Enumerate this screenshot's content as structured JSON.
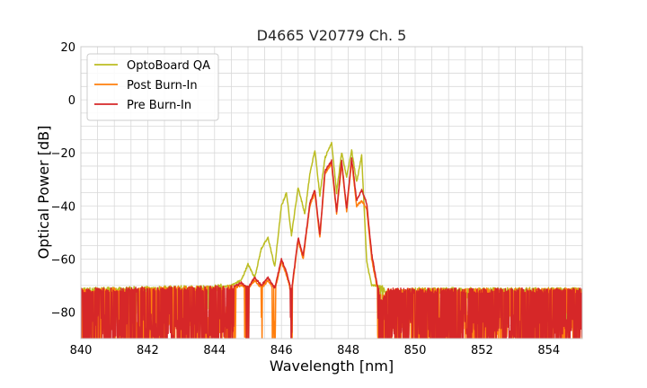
{
  "chart_data": {
    "type": "line",
    "title": "D4665 V20779 Ch. 5",
    "xlabel": "Wavelength [nm]",
    "ylabel": "Optical Power [dB]",
    "xlim": [
      840,
      855
    ],
    "ylim": [
      -90,
      20
    ],
    "xticks": [
      840,
      842,
      844,
      846,
      848,
      850,
      852,
      854
    ],
    "yticks": [
      20,
      0,
      -20,
      -40,
      -60,
      -80
    ],
    "xtick_labels": [
      "840",
      "842",
      "844",
      "846",
      "848",
      "850",
      "852",
      "854"
    ],
    "ytick_labels": [
      "20",
      "0",
      "−20",
      "−40",
      "−60",
      "−80"
    ],
    "grid": true,
    "legend_position": "top-left",
    "noise_floor_db": -72,
    "series": [
      {
        "name": "OptoBoard QA",
        "color": "#bcbd22",
        "x": [
          840.0,
          844.0,
          844.5,
          844.8,
          845.0,
          845.2,
          845.4,
          845.6,
          845.8,
          846.0,
          846.15,
          846.3,
          846.5,
          846.7,
          846.85,
          847.0,
          847.15,
          847.3,
          847.5,
          847.65,
          847.8,
          847.95,
          848.1,
          848.25,
          848.4,
          848.55,
          848.7,
          848.85,
          849.0,
          849.2,
          850.0,
          855.0
        ],
        "values": [
          -72,
          -71,
          -70,
          -68,
          -62,
          -67,
          -56,
          -52,
          -63,
          -40,
          -35,
          -51,
          -33,
          -43,
          -28,
          -19,
          -36,
          -22,
          -16,
          -35,
          -20,
          -29,
          -19,
          -31,
          -21,
          -61,
          -70,
          -70,
          -71,
          -74,
          -72,
          -72
        ]
      },
      {
        "name": "Post Burn-In",
        "color": "#ff7f0e",
        "x": [
          840.0,
          844.5,
          844.8,
          845.0,
          845.2,
          845.4,
          845.6,
          845.8,
          846.0,
          846.15,
          846.3,
          846.5,
          846.65,
          846.85,
          847.0,
          847.15,
          847.3,
          847.5,
          847.65,
          847.8,
          847.95,
          848.1,
          848.25,
          848.4,
          848.55,
          848.7,
          848.85,
          849.0,
          849.2,
          855.0
        ],
        "values": [
          -72,
          -71,
          -70,
          -71,
          -68,
          -71,
          -68,
          -72,
          -61,
          -66,
          -73,
          -53,
          -60,
          -40,
          -35,
          -52,
          -28,
          -24,
          -43,
          -24,
          -42,
          -23,
          -40,
          -38,
          -41,
          -60,
          -70,
          -75,
          -72,
          -72
        ]
      },
      {
        "name": "Pre Burn-In",
        "color": "#d62728",
        "x": [
          840.0,
          844.5,
          844.8,
          845.0,
          845.2,
          845.4,
          845.6,
          845.8,
          846.0,
          846.15,
          846.3,
          846.5,
          846.65,
          846.85,
          847.0,
          847.15,
          847.3,
          847.5,
          847.65,
          847.8,
          847.95,
          848.1,
          848.25,
          848.4,
          848.55,
          848.7,
          848.85,
          849.0,
          849.2,
          855.0
        ],
        "values": [
          -72,
          -71,
          -69,
          -71,
          -67,
          -70,
          -67,
          -71,
          -60,
          -65,
          -72,
          -52,
          -59,
          -39,
          -34,
          -51,
          -27,
          -23,
          -42,
          -23,
          -41,
          -22,
          -38,
          -34,
          -39,
          -58,
          -69,
          -76,
          -72,
          -72
        ]
      }
    ]
  }
}
